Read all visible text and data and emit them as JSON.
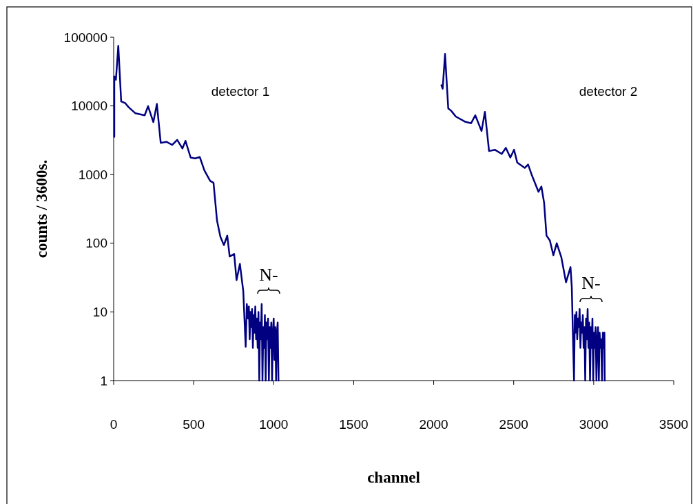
{
  "chart_data": {
    "type": "line",
    "xlabel": "channel",
    "ylabel": "counts / 3600s.",
    "xlim": [
      0,
      3500
    ],
    "xticks": [
      0,
      500,
      1000,
      1500,
      2000,
      2500,
      3000,
      3500
    ],
    "ylim": [
      1,
      100000
    ],
    "yticks": [
      1,
      10,
      100,
      1000,
      10000,
      100000
    ],
    "log": "y",
    "grid": false,
    "marker": "none",
    "line_style": "solid",
    "annotations": [
      "detector 1",
      "detector 2",
      "N-",
      "N-"
    ],
    "series": [
      {
        "color": "#000080",
        "x": [
          4,
          4,
          14,
          29,
          47,
          72,
          93,
          136,
          194,
          215,
          248,
          270,
          294,
          330,
          366,
          397,
          430,
          449,
          481,
          509,
          538,
          567,
          603,
          624,
          646,
          667,
          689,
          710,
          725,
          753,
          768,
          789,
          810,
          825,
          832,
          840,
          845,
          850,
          855,
          860,
          865,
          870,
          875,
          880,
          885,
          890,
          895,
          900,
          905,
          910,
          915,
          920,
          925,
          930,
          935,
          940,
          945,
          950,
          955,
          960,
          965,
          970,
          975,
          980,
          985,
          990,
          995,
          1000,
          1005,
          1010,
          1015,
          1020,
          1025,
          1030
        ],
        "values": [
          3550,
          27000,
          24000,
          75000,
          11600,
          11000,
          9600,
          7800,
          7300,
          9900,
          5800,
          10700,
          2900,
          3000,
          2700,
          3200,
          2400,
          3100,
          1770,
          1720,
          1800,
          1150,
          810,
          760,
          213,
          124,
          94,
          129,
          64,
          70,
          29,
          50,
          20,
          3.1,
          13,
          8,
          12,
          4,
          10,
          6,
          11,
          3,
          9,
          5,
          12,
          4,
          8,
          3,
          10,
          1,
          7,
          4,
          13,
          1,
          6,
          3,
          9,
          1,
          7,
          4,
          8,
          1,
          6,
          3,
          7,
          1,
          5,
          8,
          2,
          6,
          1,
          5,
          7,
          1
        ]
      },
      {
        "color": "#000080",
        "x": [
          2048,
          2056,
          2071,
          2091,
          2109,
          2138,
          2195,
          2234,
          2260,
          2299,
          2320,
          2346,
          2382,
          2425,
          2451,
          2479,
          2502,
          2522,
          2569,
          2590,
          2612,
          2655,
          2673,
          2690,
          2705,
          2726,
          2748,
          2769,
          2798,
          2827,
          2855,
          2863,
          2877,
          2882,
          2887,
          2892,
          2897,
          2902,
          2907,
          2912,
          2917,
          2922,
          2927,
          2932,
          2937,
          2942,
          2947,
          2952,
          2957,
          2962,
          2967,
          2972,
          2977,
          2982,
          2987,
          2992,
          2997,
          3002,
          3007,
          3012,
          3017,
          3022,
          3027,
          3032,
          3037,
          3042,
          3047,
          3052,
          3057,
          3062,
          3067,
          3069
        ],
        "values": [
          20000,
          17800,
          57000,
          9200,
          8500,
          7000,
          5900,
          5600,
          7300,
          4300,
          8200,
          2200,
          2300,
          2000,
          2450,
          1770,
          2300,
          1500,
          1250,
          1400,
          1000,
          560,
          670,
          390,
          129,
          110,
          67,
          100,
          62,
          27,
          45,
          23,
          1,
          9,
          5,
          10,
          4,
          8,
          6,
          11,
          3,
          7,
          5,
          9,
          3,
          6,
          1,
          8,
          4,
          11,
          3,
          7,
          1,
          6,
          3,
          8,
          1,
          5,
          3,
          6,
          1,
          4,
          6,
          1,
          5,
          3,
          4,
          1,
          5,
          3,
          5,
          1
        ]
      }
    ]
  }
}
